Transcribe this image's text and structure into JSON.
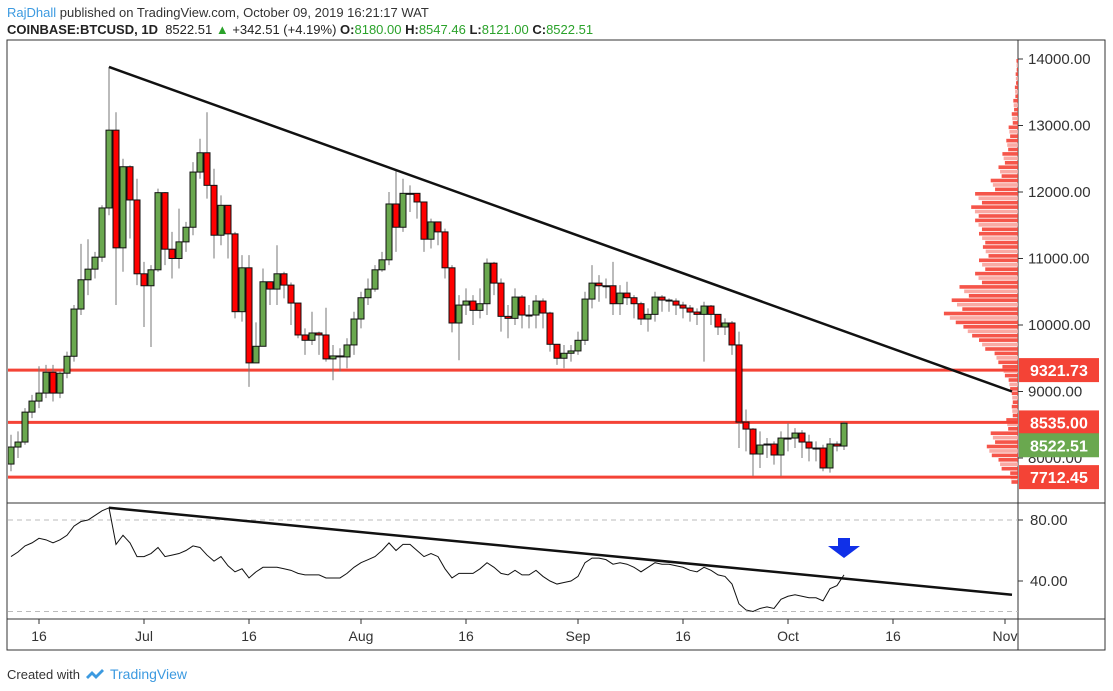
{
  "header": {
    "user": "RajDhall",
    "published": "published on TradingView.com, October 09, 2019 16:21:17 WAT",
    "symbol": "COINBASE:BTCUSD, 1D",
    "last": "8522.51",
    "change": "+342.51 (+4.19%)",
    "o_label": "O:",
    "o": "8180.00",
    "h_label": "H:",
    "h": "8547.46",
    "l_label": "L:",
    "l": "8121.00",
    "c_label": "C:",
    "c": "8522.51"
  },
  "footer": {
    "created_with": "Created with",
    "brand": "TradingView"
  },
  "colors": {
    "up": "#6aa84f",
    "down": "#ff0000",
    "level": "#f44336",
    "last_price": "#6aa84f",
    "arrow": "#1030e8"
  },
  "chart_data": [
    {
      "type": "candlestick",
      "first_date": "2019-06-12",
      "interval": "1D",
      "first_open": 7909,
      "close": [
        8165,
        8240,
        8690,
        8856,
        8976,
        9290,
        8976,
        9275,
        9530,
        10240,
        10680,
        10840,
        11020,
        11760,
        12930,
        11160,
        12380,
        11880,
        10770,
        10590,
        10830,
        11990,
        11140,
        11000,
        11250,
        11470,
        12300,
        12590,
        12100,
        11350,
        11800,
        11370,
        10200,
        10860,
        9430,
        9680,
        10650,
        10540,
        10770,
        10600,
        10330,
        9850,
        9770,
        9880,
        9850,
        9490,
        9535,
        9520,
        9700,
        10090,
        10410,
        10540,
        10830,
        10980,
        11820,
        11470,
        11980,
        11980,
        11850,
        11290,
        11550,
        11400,
        10860,
        10030,
        10300,
        10360,
        10220,
        10320,
        10930,
        10630,
        10130,
        10100,
        10420,
        10150,
        10150,
        10360,
        10180,
        9710,
        9500,
        9575,
        9610,
        9770,
        10390,
        10630,
        10590,
        10590,
        10320,
        10480,
        10410,
        10320,
        10090,
        10160,
        10420,
        10375,
        10360,
        10300,
        10255,
        10195,
        10160,
        10285,
        10160,
        9970,
        10030,
        9700,
        8540,
        8435,
        8060,
        8195,
        8210,
        8045,
        8300,
        8300,
        8375,
        8240,
        8150,
        8150,
        7850,
        8210,
        8180,
        8522.51
      ],
      "high": [
        8350,
        8400,
        8750,
        8950,
        9380,
        9400,
        9400,
        9300,
        9600,
        10300,
        11220,
        11290,
        11100,
        11800,
        13880,
        13200,
        12500,
        12400,
        12200,
        10950,
        10900,
        12050,
        12000,
        11400,
        11750,
        11550,
        12450,
        12800,
        13200,
        12350,
        11950,
        11800,
        11400,
        11050,
        11050,
        10040,
        10850,
        10650,
        11200,
        10800,
        10640,
        10330,
        9950,
        10200,
        9900,
        10260,
        9700,
        9650,
        9800,
        10200,
        10500,
        10700,
        10900,
        11100,
        12000,
        12320,
        12200,
        12100,
        11950,
        11850,
        11600,
        11550,
        11450,
        10900,
        10450,
        10550,
        10450,
        10550,
        11000,
        10950,
        10700,
        10300,
        10550,
        10450,
        10300,
        10450,
        10400,
        10200,
        9650,
        9700,
        9700,
        9900,
        10500,
        10900,
        10750,
        10700,
        10950,
        10600,
        10650,
        10450,
        10350,
        10250,
        10500,
        10450,
        10400,
        10400,
        10350,
        10300,
        10250,
        10350,
        10300,
        10150,
        10100,
        10060,
        9900,
        8730,
        8450,
        8400,
        8300,
        8250,
        8400,
        8525,
        8450,
        8420,
        8350,
        8250,
        8200,
        8300,
        8250,
        8547.46
      ],
      "low": [
        7800,
        8000,
        8200,
        8600,
        8750,
        8900,
        8850,
        8900,
        9200,
        9450,
        10150,
        10450,
        10700,
        10950,
        11650,
        10300,
        10800,
        11300,
        10600,
        9970,
        9670,
        10800,
        10900,
        10700,
        10850,
        11100,
        11350,
        12200,
        11900,
        11000,
        11200,
        11000,
        10100,
        10050,
        9070,
        9430,
        9700,
        10300,
        10300,
        10400,
        10000,
        9800,
        9550,
        9700,
        9550,
        9450,
        9170,
        9300,
        9350,
        9550,
        9950,
        10300,
        10500,
        10800,
        10900,
        11100,
        11400,
        11700,
        11600,
        11100,
        11150,
        11200,
        10700,
        9890,
        9470,
        10150,
        10000,
        10100,
        10150,
        10450,
        9900,
        9800,
        10000,
        9950,
        9950,
        9950,
        9950,
        9600,
        9400,
        9350,
        9450,
        9550,
        9700,
        10250,
        10350,
        10400,
        10150,
        10150,
        10300,
        10100,
        10000,
        9900,
        10050,
        10200,
        10200,
        10150,
        10100,
        10050,
        10000,
        9450,
        10000,
        9850,
        9850,
        9550,
        8150,
        8100,
        7730,
        7850,
        8000,
        7900,
        7730,
        8100,
        8150,
        8000,
        7950,
        7950,
        7800,
        7780,
        8100,
        8121
      ]
    },
    {
      "type": "line",
      "x_axis_ticks": [
        "16",
        "Jul",
        "16",
        "Aug",
        "16",
        "Sep",
        "16",
        "Oct",
        "16",
        "Nov"
      ],
      "x_axis_tick_dates": [
        "2019-06-16",
        "2019-07-01",
        "2019-07-16",
        "2019-08-01",
        "2019-08-16",
        "2019-09-01",
        "2019-09-16",
        "2019-10-01",
        "2019-10-16",
        "2019-11-01"
      ],
      "price_axis_ticks": [
        "14000.00",
        "13000.00",
        "12000.00",
        "11000.00",
        "10000.00",
        "9000.00",
        "8000.00"
      ],
      "price_range": [
        7450,
        14350
      ],
      "horizontal_levels": [
        {
          "price": 9321.73,
          "label": "9321.73"
        },
        {
          "price": 8535.0,
          "label": "8535.00"
        },
        {
          "price": 7712.45,
          "label": "7712.45"
        }
      ],
      "last_price_label": "8522.51",
      "price_trendline": {
        "from": [
          "2019-06-26",
          13880
        ],
        "to": [
          "2019-11-02",
          9000
        ]
      },
      "volume_profile": {
        "prices": [
          7700,
          7900,
          8100,
          8300,
          8500,
          8700,
          8900,
          9100,
          9300,
          9500,
          9700,
          9900,
          10100,
          10300,
          10500,
          10700,
          10900,
          11100,
          11300,
          11500,
          11700,
          11900,
          12100,
          12300,
          12500,
          12700,
          12900,
          13100,
          13300,
          13500,
          13700,
          13900
        ],
        "relative_volume": [
          0.1,
          0.25,
          0.4,
          0.35,
          0.15,
          0.08,
          0.08,
          0.12,
          0.2,
          0.3,
          0.5,
          0.7,
          0.95,
          0.85,
          0.75,
          0.55,
          0.5,
          0.45,
          0.5,
          0.55,
          0.6,
          0.55,
          0.35,
          0.25,
          0.2,
          0.15,
          0.12,
          0.08,
          0.06,
          0.04,
          0.03,
          0.02
        ]
      }
    },
    {
      "type": "line",
      "indicator": "oscillator",
      "axis_ticks": [
        "80.00",
        "40.00"
      ],
      "bands": [
        80,
        20
      ],
      "range": [
        12,
        92
      ],
      "values": [
        56,
        59,
        63,
        65,
        68,
        67,
        65,
        67,
        70,
        76,
        79,
        80,
        83,
        86,
        88,
        64,
        70,
        65,
        56,
        56,
        58,
        62,
        56,
        57,
        58,
        60,
        63,
        62,
        57,
        53,
        56,
        50,
        46,
        48,
        42,
        46,
        49,
        49,
        49,
        48,
        47,
        45,
        44,
        44,
        44,
        42,
        42,
        42,
        45,
        49,
        52,
        54,
        56,
        60,
        65,
        60,
        64,
        64,
        60,
        56,
        58,
        56,
        48,
        42,
        45,
        45,
        45,
        48,
        52,
        49,
        45,
        44,
        47,
        44,
        44,
        47,
        43,
        40,
        38,
        39,
        40,
        43,
        52,
        55,
        55,
        54,
        51,
        52,
        51,
        49,
        46,
        49,
        52,
        51,
        51,
        50,
        49,
        47,
        46,
        49,
        47,
        44,
        43,
        38,
        25,
        21,
        20,
        22,
        23,
        22,
        28,
        30,
        31,
        30,
        29,
        29,
        27,
        35,
        37,
        44
      ],
      "trendline": {
        "from": [
          "2019-06-26",
          88
        ],
        "to": [
          "2019-11-02",
          31
        ]
      },
      "annotation": "down-arrow"
    }
  ]
}
